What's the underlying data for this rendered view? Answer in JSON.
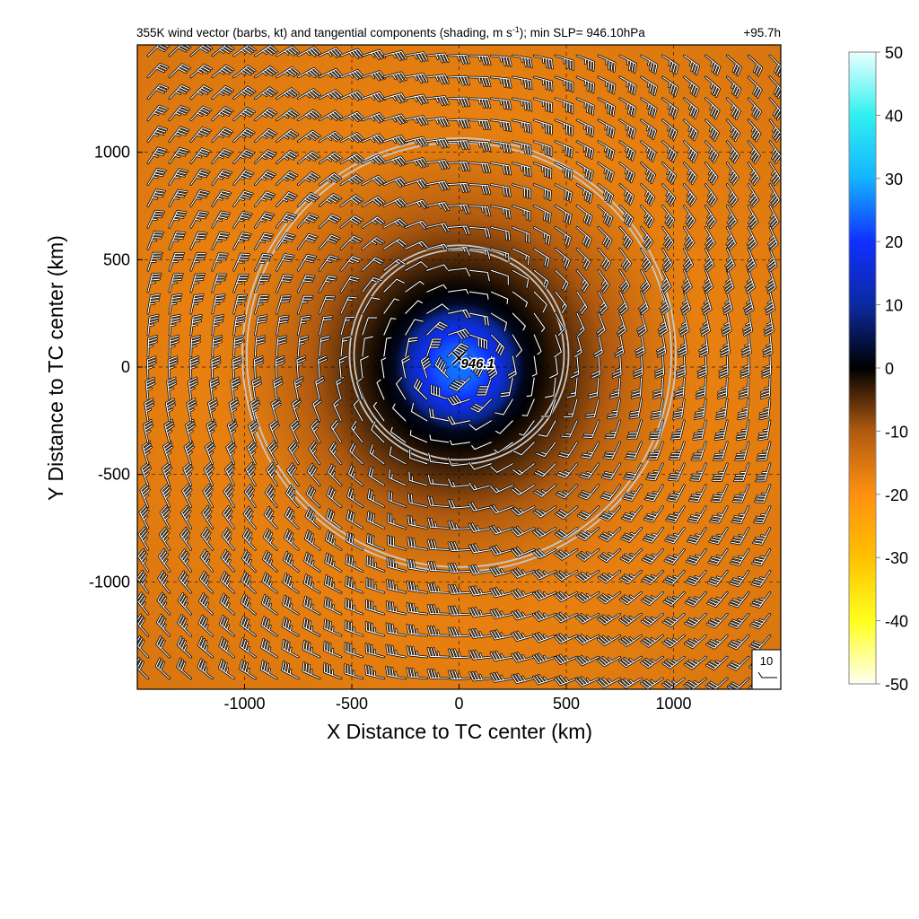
{
  "chart_data": {
    "type": "heatmap",
    "title_main": "355K wind vector (barbs, kt) and tangential components (shading, m s",
    "title_sup": "-1",
    "title_tail": "); min SLP= 946.10hPa",
    "forecast_hour": "+95.7h",
    "xlabel": "X Distance to TC center (km)",
    "ylabel": "Y Distance to TC center (km)",
    "xlim": [
      -1500,
      1500
    ],
    "ylim": [
      -1500,
      1500
    ],
    "x_ticks": [
      -1000,
      -500,
      0,
      500,
      1000
    ],
    "y_ticks": [
      -1000,
      -500,
      0,
      500,
      1000
    ],
    "grid": "dashed",
    "colorbar": {
      "range": [
        -50,
        50
      ],
      "ticks": [
        50,
        40,
        30,
        20,
        10,
        0,
        -10,
        -20,
        -30,
        -40,
        -50
      ],
      "stops": [
        {
          "v": -50,
          "c": "#fffff2"
        },
        {
          "v": -40,
          "c": "#ffff1e"
        },
        {
          "v": -30,
          "c": "#ffc000"
        },
        {
          "v": -20,
          "c": "#ff9010"
        },
        {
          "v": -10,
          "c": "#b05a10"
        },
        {
          "v": 0,
          "c": "#000000"
        },
        {
          "v": 10,
          "c": "#0c2aa0"
        },
        {
          "v": 20,
          "c": "#1030ff"
        },
        {
          "v": 30,
          "c": "#14b4ff"
        },
        {
          "v": 40,
          "c": "#30f0f0"
        },
        {
          "v": 50,
          "c": "#eaffff"
        }
      ]
    },
    "field": {
      "center_value": 25,
      "core_radius_km": 300,
      "min_value": -17,
      "min_radius_km": 1200,
      "outer_value": -15
    },
    "circles_km": [
      {
        "cx": 0,
        "cy": 57,
        "r": 500
      },
      {
        "cx": 0,
        "cy": 57,
        "r": 1000
      }
    ],
    "center_marker": {
      "x": 0,
      "y": 0,
      "label": "946.1"
    },
    "barbs": {
      "spacing_km": 100,
      "direction": "counterclockwise"
    },
    "reference_vector": {
      "label": "10"
    }
  }
}
